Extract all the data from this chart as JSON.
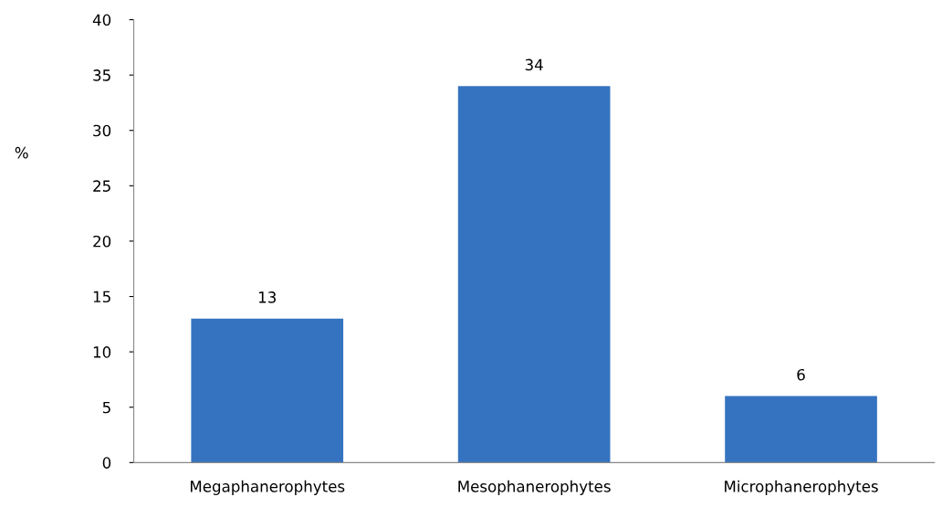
{
  "chart_data": {
    "type": "bar",
    "ylabel": "%",
    "categories": [
      "Megaphanerophytes",
      "Mesophanerophytes",
      "Microphanerophytes"
    ],
    "values": [
      13,
      34,
      6
    ],
    "color": "#3573c0",
    "ylim": [
      0,
      40
    ],
    "yticks": [
      0,
      5,
      10,
      15,
      20,
      25,
      30,
      35,
      40
    ],
    "data_labels": true,
    "grid": false
  }
}
